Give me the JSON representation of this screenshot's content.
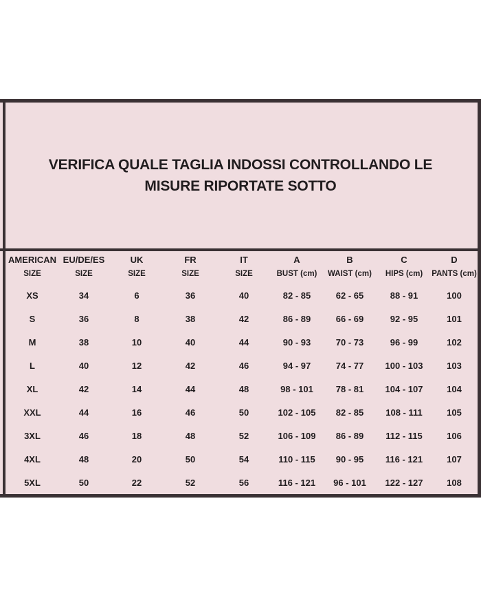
{
  "colors": {
    "page_background": "#ffffff",
    "panel_background": "#f0dde0",
    "frame": "#3a3134",
    "text": "#211d1f"
  },
  "title": {
    "line1": "VERIFICA QUALE TAGLIA INDOSSI CONTROLLANDO LE",
    "line2": "MISURE RIPORTATE SOTTO"
  },
  "table": {
    "columns": [
      {
        "line1": "AMERICAN",
        "line2": "SIZE"
      },
      {
        "line1": "EU/DE/ES",
        "line2": "SIZE"
      },
      {
        "line1": "UK",
        "line2": "SIZE"
      },
      {
        "line1": "FR",
        "line2": "SIZE"
      },
      {
        "line1": "IT",
        "line2": "SIZE"
      },
      {
        "line1": "A",
        "line2": "BUST (cm)"
      },
      {
        "line1": "B",
        "line2": "WAIST (cm)"
      },
      {
        "line1": "C",
        "line2": "HIPS (cm)"
      },
      {
        "line1": "D",
        "line2": "PANTS (cm)"
      }
    ],
    "rows": [
      [
        "XS",
        "34",
        "6",
        "36",
        "40",
        "82 - 85",
        "62 - 65",
        "88 - 91",
        "100"
      ],
      [
        "S",
        "36",
        "8",
        "38",
        "42",
        "86 - 89",
        "66 - 69",
        "92 - 95",
        "101"
      ],
      [
        "M",
        "38",
        "10",
        "40",
        "44",
        "90 - 93",
        "70 - 73",
        "96 - 99",
        "102"
      ],
      [
        "L",
        "40",
        "12",
        "42",
        "46",
        "94 - 97",
        "74 - 77",
        "100 - 103",
        "103"
      ],
      [
        "XL",
        "42",
        "14",
        "44",
        "48",
        "98 - 101",
        "78 - 81",
        "104 - 107",
        "104"
      ],
      [
        "XXL",
        "44",
        "16",
        "46",
        "50",
        "102 - 105",
        "82 - 85",
        "108 - 111",
        "105"
      ],
      [
        "3XL",
        "46",
        "18",
        "48",
        "52",
        "106 - 109",
        "86 - 89",
        "112 - 115",
        "106"
      ],
      [
        "4XL",
        "48",
        "20",
        "50",
        "54",
        "110 - 115",
        "90 - 95",
        "116 - 121",
        "107"
      ],
      [
        "5XL",
        "50",
        "22",
        "52",
        "56",
        "116 - 121",
        "96 - 101",
        "122 - 127",
        "108"
      ]
    ]
  }
}
